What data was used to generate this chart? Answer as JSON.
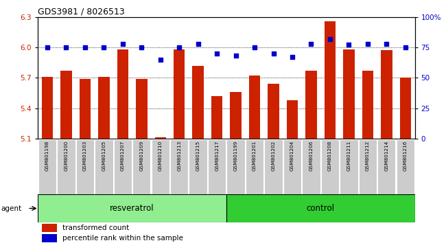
{
  "title": "GDS3981 / 8026513",
  "samples": [
    "GSM801198",
    "GSM801200",
    "GSM801203",
    "GSM801205",
    "GSM801207",
    "GSM801209",
    "GSM801210",
    "GSM801213",
    "GSM801215",
    "GSM801217",
    "GSM801199",
    "GSM801201",
    "GSM801202",
    "GSM801204",
    "GSM801206",
    "GSM801208",
    "GSM801211",
    "GSM801212",
    "GSM801214",
    "GSM801216"
  ],
  "bar_values": [
    5.71,
    5.77,
    5.69,
    5.71,
    5.98,
    5.69,
    5.11,
    5.98,
    5.82,
    5.52,
    5.56,
    5.72,
    5.64,
    5.48,
    5.77,
    6.26,
    5.98,
    5.77,
    5.97,
    5.7
  ],
  "dot_values": [
    75,
    75,
    75,
    75,
    78,
    75,
    65,
    75,
    78,
    70,
    68,
    75,
    70,
    67,
    78,
    82,
    77,
    78,
    78,
    75
  ],
  "bar_color": "#cc2200",
  "dot_color": "#0000cc",
  "ylim_left": [
    5.1,
    6.3
  ],
  "ylim_right": [
    0,
    100
  ],
  "yticks_left": [
    5.1,
    5.4,
    5.7,
    6.0,
    6.3
  ],
  "yticks_right": [
    0,
    25,
    50,
    75,
    100
  ],
  "ytick_labels_right": [
    "0",
    "25",
    "50",
    "75",
    "100%"
  ],
  "resveratrol_count": 10,
  "control_count": 10,
  "group_label_resveratrol": "resveratrol",
  "group_label_control": "control",
  "agent_label": "agent",
  "legend_bar": "transformed count",
  "legend_dot": "percentile rank within the sample",
  "bar_width": 0.6,
  "background_color": "#ffffff",
  "xticklabel_bg": "#cccccc",
  "group_bg_resveratrol": "#90ee90",
  "group_bg_control": "#32cd32"
}
